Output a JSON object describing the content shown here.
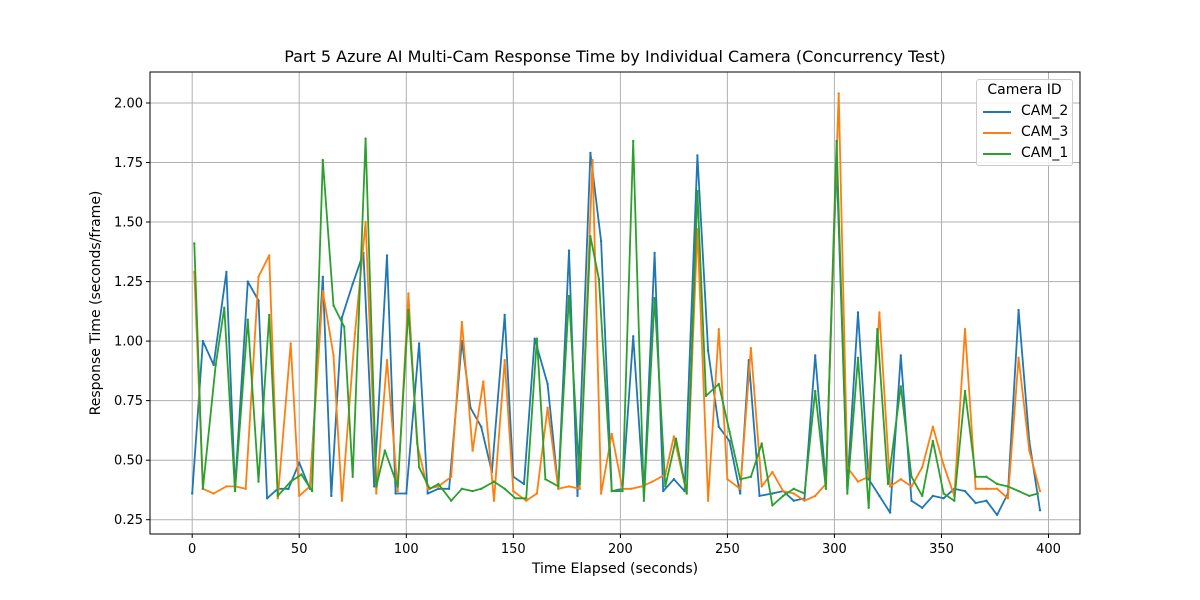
{
  "chart_data": {
    "type": "line",
    "title": "Part 5 Azure AI Multi-Cam Response Time by Individual Camera (Concurrency Test)",
    "xlabel": "Time Elapsed (seconds)",
    "ylabel": "Response Time (seconds/frame)",
    "xlim": [
      -19.7,
      414.7
    ],
    "ylim": [
      0.19,
      2.13
    ],
    "xticks": [
      0,
      50,
      100,
      150,
      200,
      250,
      300,
      350,
      400
    ],
    "yticks": [
      0.25,
      0.5,
      0.75,
      1.0,
      1.25,
      1.5,
      1.75,
      2.0
    ],
    "ytick_labels": [
      "0.25",
      "0.50",
      "0.75",
      "1.00",
      "1.25",
      "1.50",
      "1.75",
      "2.00"
    ],
    "grid": true,
    "legend": {
      "title": "Camera ID",
      "position": "upper right"
    },
    "series": [
      {
        "name": "CAM_2",
        "color": "#1f77b4",
        "x": [
          0,
          5,
          10,
          16,
          20,
          26,
          31,
          35,
          40,
          45,
          50,
          55,
          61,
          65,
          70,
          75,
          80,
          85,
          91,
          95,
          100,
          106,
          110,
          115,
          120,
          126,
          130,
          135,
          140,
          146,
          150,
          155,
          160,
          166,
          171,
          176,
          180,
          186,
          191,
          196,
          201,
          206,
          211,
          216,
          220,
          225,
          230,
          236,
          241,
          246,
          251,
          256,
          260,
          265,
          271,
          276,
          281,
          286,
          291,
          296,
          301,
          306,
          311,
          316,
          321,
          326,
          331,
          336,
          341,
          346,
          351,
          356,
          361,
          366,
          371,
          376,
          381,
          386,
          391,
          396
        ],
        "y": [
          0.36,
          1.0,
          0.9,
          1.29,
          0.38,
          1.25,
          1.17,
          0.34,
          0.38,
          0.38,
          0.49,
          0.38,
          1.27,
          0.35,
          1.1,
          1.24,
          1.37,
          0.39,
          1.36,
          0.36,
          0.36,
          0.99,
          0.36,
          0.38,
          0.38,
          1.0,
          0.72,
          0.64,
          0.45,
          1.11,
          0.43,
          0.4,
          1.01,
          0.82,
          0.38,
          1.38,
          0.35,
          1.79,
          1.42,
          0.37,
          0.38,
          1.02,
          0.35,
          1.37,
          0.37,
          0.42,
          0.37,
          1.78,
          0.96,
          0.64,
          0.58,
          0.36,
          0.92,
          0.35,
          0.36,
          0.37,
          0.33,
          0.34,
          0.94,
          0.4,
          1.75,
          0.39,
          1.12,
          0.42,
          0.35,
          0.28,
          0.94,
          0.33,
          0.3,
          0.35,
          0.34,
          0.38,
          0.37,
          0.32,
          0.33,
          0.27,
          0.36,
          1.13,
          0.58,
          0.29
        ]
      },
      {
        "name": "CAM_3",
        "color": "#ff7f0e",
        "x": [
          1,
          5,
          10,
          16,
          20,
          25,
          31,
          36,
          40,
          46,
          50,
          55,
          61,
          66,
          70,
          76,
          81,
          86,
          91,
          96,
          101,
          105,
          110,
          115,
          121,
          126,
          131,
          136,
          141,
          146,
          150,
          156,
          161,
          166,
          171,
          176,
          181,
          187,
          191,
          196,
          201,
          205,
          210,
          215,
          221,
          225,
          231,
          236,
          241,
          246,
          250,
          256,
          261,
          266,
          271,
          276,
          281,
          286,
          291,
          296,
          302,
          306,
          311,
          316,
          321,
          326,
          331,
          336,
          341,
          346,
          351,
          356,
          361,
          366,
          371,
          376,
          381,
          386,
          391,
          396
        ],
        "y": [
          1.29,
          0.38,
          0.36,
          0.39,
          0.39,
          0.38,
          1.27,
          1.36,
          0.34,
          0.99,
          0.35,
          0.39,
          1.21,
          0.94,
          0.33,
          1.03,
          1.5,
          0.36,
          0.92,
          0.37,
          1.2,
          0.57,
          0.38,
          0.39,
          0.43,
          1.08,
          0.54,
          0.83,
          0.33,
          0.92,
          0.37,
          0.33,
          0.36,
          0.72,
          0.38,
          0.39,
          0.38,
          1.76,
          0.36,
          0.61,
          0.38,
          0.38,
          0.39,
          0.41,
          0.44,
          0.6,
          0.36,
          1.47,
          0.33,
          1.05,
          0.42,
          0.38,
          0.97,
          0.39,
          0.45,
          0.37,
          0.36,
          0.33,
          0.35,
          0.4,
          2.04,
          0.47,
          0.41,
          0.43,
          1.12,
          0.39,
          0.42,
          0.39,
          0.47,
          0.64,
          0.48,
          0.35,
          1.05,
          0.38,
          0.38,
          0.38,
          0.34,
          0.93,
          0.54,
          0.37
        ]
      },
      {
        "name": "CAM_1",
        "color": "#2ca02c",
        "x": [
          1,
          5,
          11,
          15,
          20,
          26,
          31,
          36,
          40,
          46,
          51,
          56,
          61,
          66,
          71,
          75,
          81,
          86,
          90,
          96,
          101,
          106,
          111,
          115,
          121,
          126,
          131,
          135,
          141,
          146,
          151,
          156,
          161,
          165,
          171,
          176,
          181,
          186,
          190,
          196,
          201,
          206,
          211,
          216,
          221,
          226,
          231,
          236,
          240,
          246,
          251,
          256,
          261,
          266,
          271,
          276,
          281,
          286,
          291,
          296,
          301,
          306,
          311,
          316,
          320,
          325,
          331,
          336,
          341,
          346,
          351,
          356,
          361,
          366,
          371,
          376,
          381,
          386,
          391,
          395
        ],
        "y": [
          1.41,
          0.38,
          0.9,
          1.14,
          0.37,
          1.09,
          0.41,
          1.11,
          0.35,
          0.41,
          0.44,
          0.37,
          1.76,
          1.15,
          1.06,
          0.43,
          1.85,
          0.39,
          0.54,
          0.39,
          1.13,
          0.47,
          0.38,
          0.4,
          0.33,
          0.38,
          0.37,
          0.38,
          0.41,
          0.38,
          0.34,
          0.34,
          1.01,
          0.42,
          0.39,
          1.19,
          0.4,
          1.44,
          1.26,
          0.37,
          0.37,
          1.84,
          0.33,
          1.18,
          0.39,
          0.59,
          0.36,
          1.63,
          0.77,
          0.82,
          0.62,
          0.42,
          0.43,
          0.57,
          0.31,
          0.35,
          0.38,
          0.36,
          0.79,
          0.38,
          1.84,
          0.36,
          0.93,
          0.3,
          1.05,
          0.4,
          0.81,
          0.43,
          0.35,
          0.58,
          0.36,
          0.33,
          0.79,
          0.43,
          0.43,
          0.4,
          0.39,
          0.37,
          0.35,
          0.36
        ]
      }
    ]
  }
}
